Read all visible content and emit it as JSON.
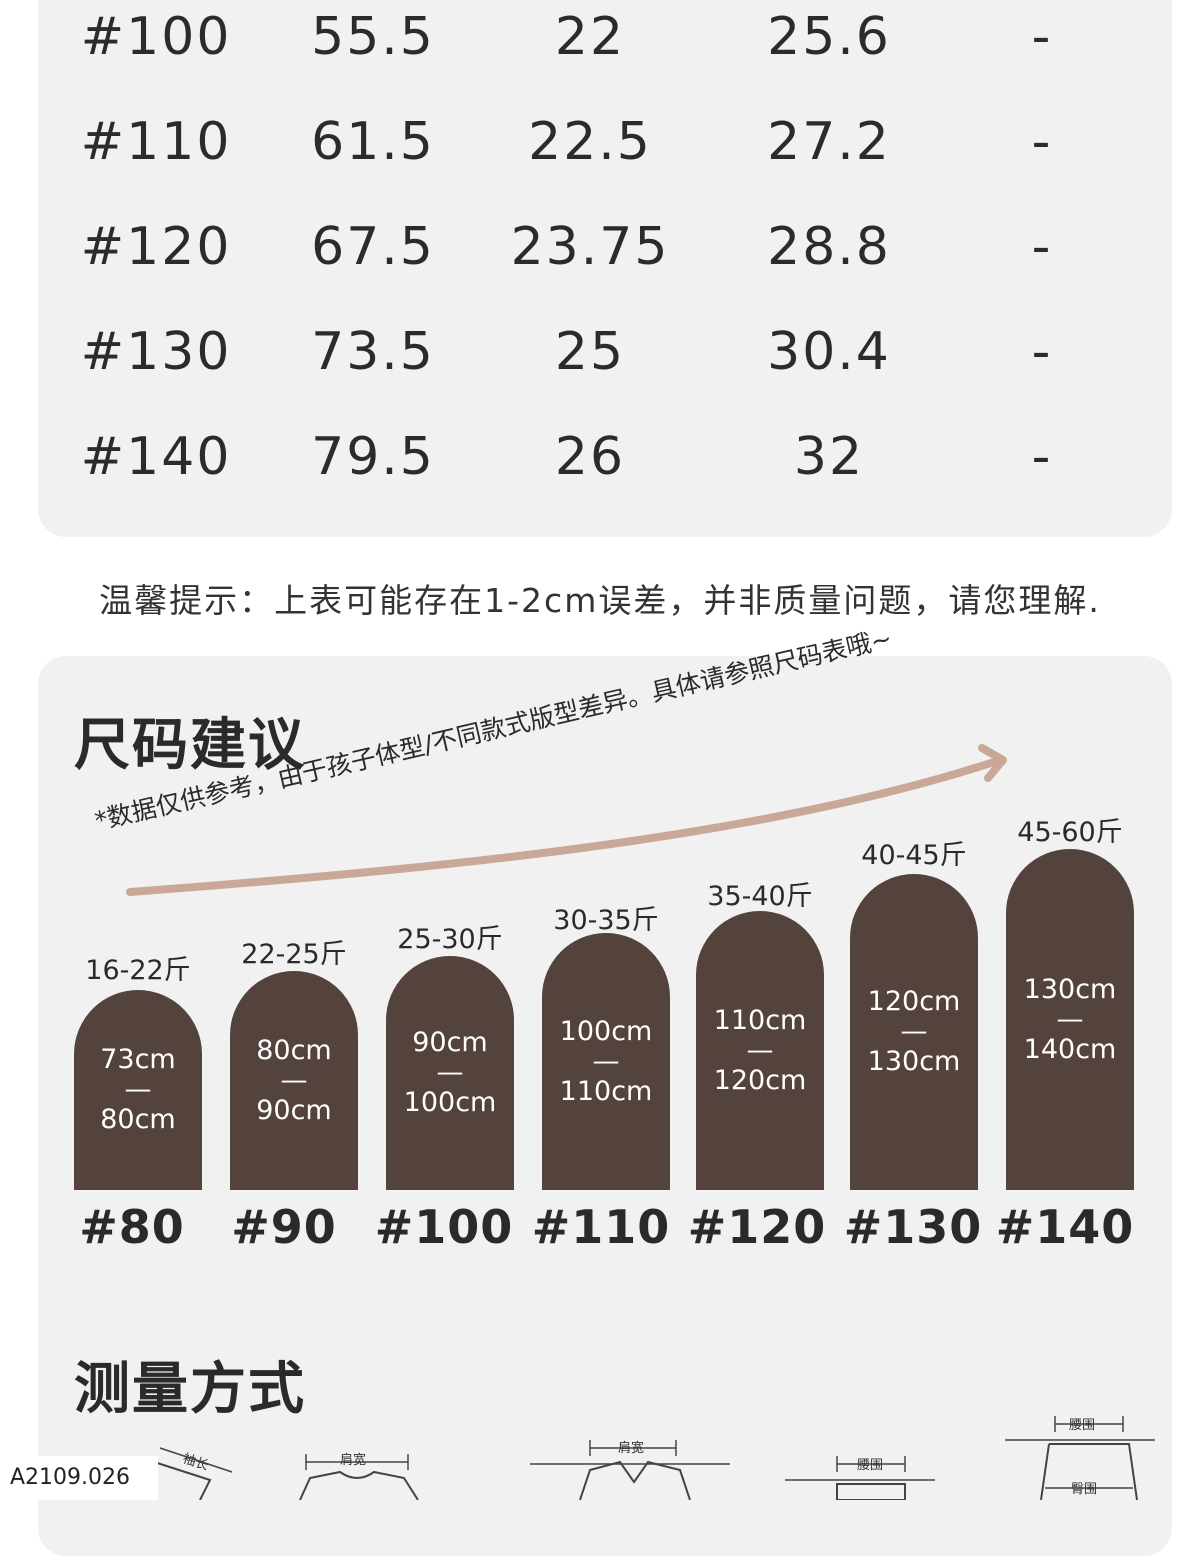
{
  "table": {
    "rows": [
      {
        "size": "#100",
        "c1": "55.5",
        "c2": "22",
        "c3": "25.6",
        "c4": "-"
      },
      {
        "size": "#110",
        "c1": "61.5",
        "c2": "22.5",
        "c3": "27.2",
        "c4": "-"
      },
      {
        "size": "#120",
        "c1": "67.5",
        "c2": "23.75",
        "c3": "28.8",
        "c4": "-"
      },
      {
        "size": "#130",
        "c1": "73.5",
        "c2": "25",
        "c3": "30.4",
        "c4": "-"
      },
      {
        "size": "#140",
        "c1": "79.5",
        "c2": "26",
        "c3": "32",
        "c4": "-"
      }
    ]
  },
  "tip": "温馨提示：上表可能存在1-2cm误差，并非质量问题，请您理解.",
  "advice": {
    "title": "尺码建议",
    "note": "*数据仅供参考，由于孩子体型/不同款式版型差异。具体请参照尺码表哦~",
    "sizes": [
      {
        "weight": "16-22斤",
        "height_top": "73cm",
        "dash": "—",
        "height_bottom": "80cm",
        "label": "#80"
      },
      {
        "weight": "22-25斤",
        "height_top": "80cm",
        "dash": "—",
        "height_bottom": "90cm",
        "label": "#90"
      },
      {
        "weight": "25-30斤",
        "height_top": "90cm",
        "dash": "—",
        "height_bottom": "100cm",
        "label": "#100"
      },
      {
        "weight": "30-35斤",
        "height_top": "100cm",
        "dash": "—",
        "height_bottom": "110cm",
        "label": "#110"
      },
      {
        "weight": "35-40斤",
        "height_top": "110cm",
        "dash": "—",
        "height_bottom": "120cm",
        "label": "#120"
      },
      {
        "weight": "40-45斤",
        "height_top": "120cm",
        "dash": "—",
        "height_bottom": "130cm",
        "label": "#130"
      },
      {
        "weight": "45-60斤",
        "height_top": "130cm",
        "dash": "—",
        "height_bottom": "140cm",
        "label": "#140"
      }
    ],
    "colors": {
      "pill": "#54423c",
      "arrow": "#c9a897"
    }
  },
  "measure": {
    "title": "测量方式",
    "labels": {
      "sleeve": "袖长",
      "shoulder1": "肩宽",
      "shoulder2": "肩宽",
      "waist1": "腰围",
      "waist2": "腰围",
      "hip": "臀围"
    }
  },
  "product_code": "A2109.026"
}
